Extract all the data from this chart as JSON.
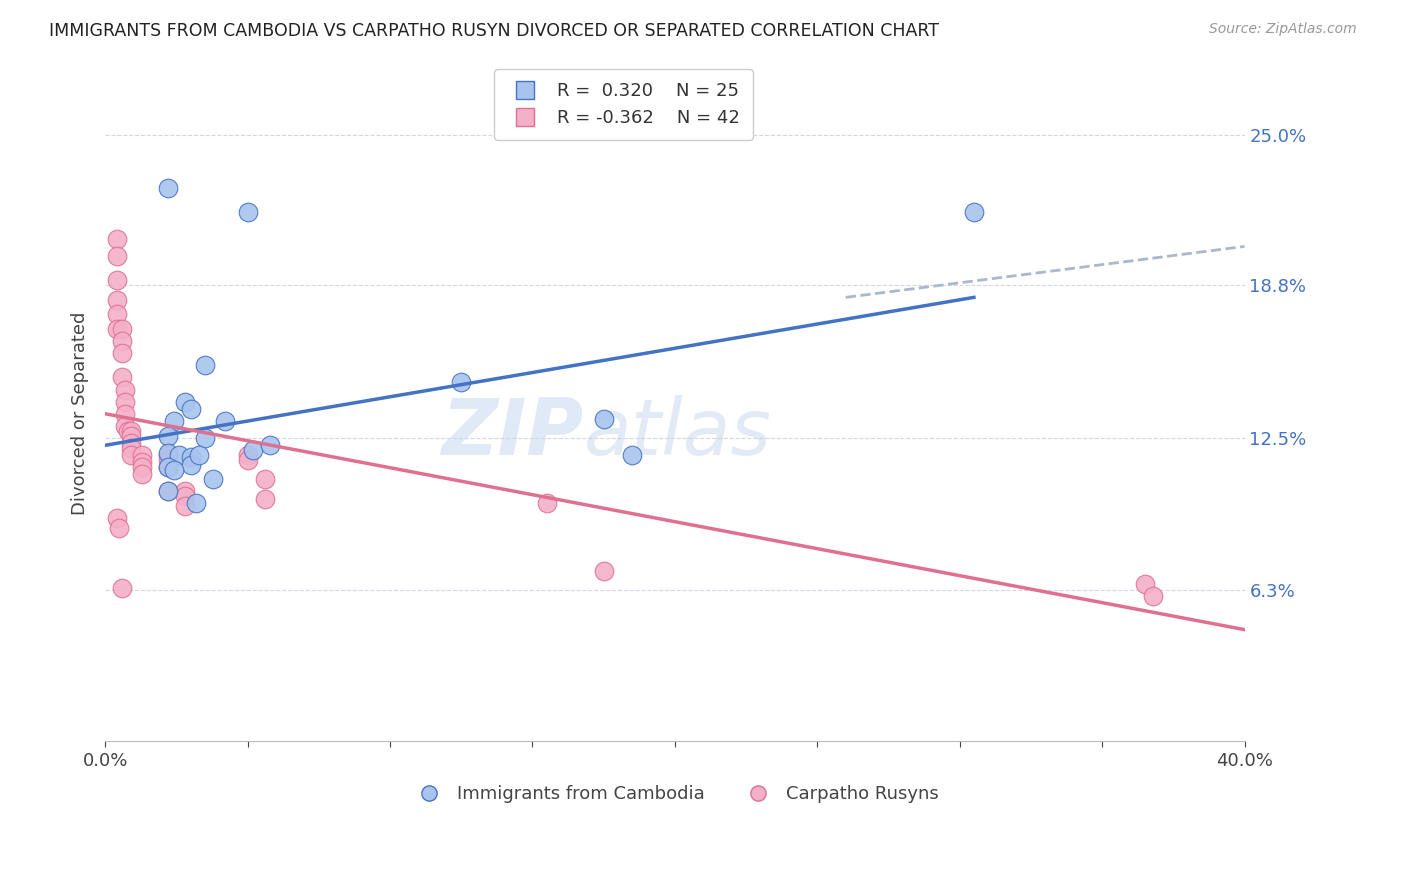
{
  "title": "IMMIGRANTS FROM CAMBODIA VS CARPATHO RUSYN DIVORCED OR SEPARATED CORRELATION CHART",
  "source": "Source: ZipAtlas.com",
  "ylabel": "Divorced or Separated",
  "xlim": [
    0.0,
    0.4
  ],
  "ylim": [
    0.0,
    0.27
  ],
  "yticks": [
    0.0625,
    0.125,
    0.188,
    0.25
  ],
  "ytick_labels": [
    "6.3%",
    "12.5%",
    "18.8%",
    "25.0%"
  ],
  "xticks": [
    0.0,
    0.05,
    0.1,
    0.15,
    0.2,
    0.25,
    0.3,
    0.35,
    0.4
  ],
  "legend_r1": "R =  0.320",
  "legend_n1": "N = 25",
  "legend_r2": "R = -0.362",
  "legend_n2": "N = 42",
  "color_blue": "#a8c4ee",
  "color_pink": "#f4b0c8",
  "color_blue_line": "#4472c4",
  "color_pink_line": "#e07090",
  "color_dashed": "#aab8cc",
  "watermark_zip": "ZIP",
  "watermark_atlas": "atlas",
  "blue_scatter_x": [
    0.022,
    0.05,
    0.035,
    0.028,
    0.03,
    0.024,
    0.022,
    0.035,
    0.052,
    0.058,
    0.022,
    0.026,
    0.03,
    0.03,
    0.038,
    0.125,
    0.175,
    0.185,
    0.022,
    0.032,
    0.042,
    0.305,
    0.022,
    0.024,
    0.033
  ],
  "blue_scatter_y": [
    0.228,
    0.218,
    0.155,
    0.14,
    0.137,
    0.132,
    0.126,
    0.125,
    0.12,
    0.122,
    0.119,
    0.118,
    0.117,
    0.114,
    0.108,
    0.148,
    0.133,
    0.118,
    0.103,
    0.098,
    0.132,
    0.218,
    0.113,
    0.112,
    0.118
  ],
  "pink_scatter_x": [
    0.004,
    0.004,
    0.004,
    0.004,
    0.004,
    0.004,
    0.006,
    0.006,
    0.006,
    0.006,
    0.007,
    0.007,
    0.007,
    0.007,
    0.008,
    0.009,
    0.009,
    0.009,
    0.009,
    0.009,
    0.013,
    0.013,
    0.013,
    0.013,
    0.022,
    0.022,
    0.022,
    0.022,
    0.028,
    0.028,
    0.028,
    0.05,
    0.05,
    0.056,
    0.056,
    0.155,
    0.175,
    0.365,
    0.368,
    0.004,
    0.005,
    0.006
  ],
  "pink_scatter_y": [
    0.207,
    0.2,
    0.19,
    0.182,
    0.176,
    0.17,
    0.17,
    0.165,
    0.16,
    0.15,
    0.145,
    0.14,
    0.135,
    0.13,
    0.128,
    0.128,
    0.126,
    0.123,
    0.121,
    0.118,
    0.118,
    0.115,
    0.113,
    0.11,
    0.118,
    0.116,
    0.113,
    0.103,
    0.103,
    0.101,
    0.097,
    0.118,
    0.116,
    0.108,
    0.1,
    0.098,
    0.07,
    0.065,
    0.06,
    0.092,
    0.088,
    0.063
  ],
  "blue_line_x": [
    0.0,
    0.305
  ],
  "blue_line_y": [
    0.122,
    0.183
  ],
  "pink_line_x": [
    0.0,
    0.4
  ],
  "pink_line_y": [
    0.135,
    0.046
  ],
  "dashed_line_x": [
    0.26,
    0.4
  ],
  "dashed_line_y": [
    0.183,
    0.204
  ]
}
